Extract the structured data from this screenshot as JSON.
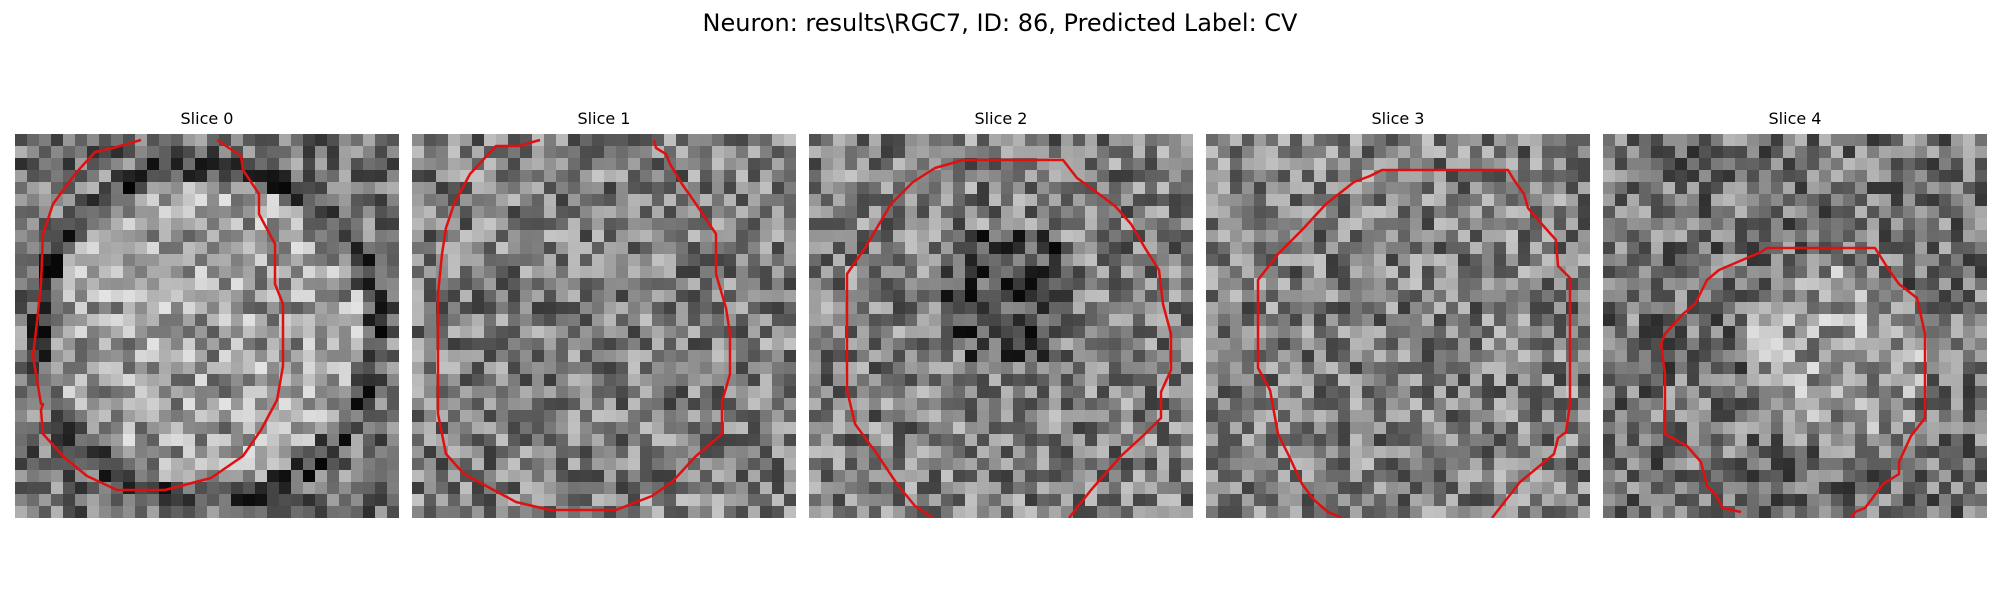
{
  "figure": {
    "title": "Neuron: results\\RGC7, ID: 86, Predicted Label: CV",
    "panels": [
      {
        "title": "Slice 0",
        "tone": "bright-cell-center"
      },
      {
        "title": "Slice 1",
        "tone": "uniform-noisy"
      },
      {
        "title": "Slice 2",
        "tone": "dark-center"
      },
      {
        "title": "Slice 3",
        "tone": "uniform-noisy"
      },
      {
        "title": "Slice 4",
        "tone": "small-bright-center"
      }
    ],
    "contour_color": "#e01010",
    "colormap": "grayscale"
  }
}
